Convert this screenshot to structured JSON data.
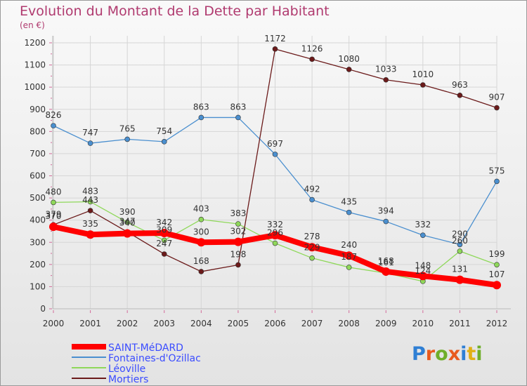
{
  "title": "Evolution du Montant de la Dette par Habitant",
  "subtitle": "(en €)",
  "logo": {
    "text": "Proxiti",
    "colors": [
      "#2f7fd4",
      "#e85a1e",
      "#6fae2a",
      "#e85a1e",
      "#2f7fd4",
      "#e1b014",
      "#6fae2a"
    ]
  },
  "chart_data": {
    "type": "line",
    "x": [
      "2000",
      "2001",
      "2002",
      "2003",
      "2004",
      "2005",
      "2006",
      "2007",
      "2008",
      "2009",
      "2010",
      "2011",
      "2012"
    ],
    "ylim": [
      0,
      1200
    ],
    "yticks": [
      "0",
      "100",
      "200",
      "300",
      "400",
      "500",
      "600",
      "700",
      "800",
      "900",
      "1000",
      "1100",
      "1200"
    ],
    "grid": true,
    "legend_position": "bottom-left",
    "series": [
      {
        "name": "SAINT-MéDARD",
        "color": "#ff0000",
        "values": [
          370,
          335,
          340,
          342,
          300,
          302,
          332,
          278,
          240,
          168,
          148,
          131,
          107
        ],
        "labels": [
          "370",
          "335",
          "340",
          "342",
          "300",
          "302",
          "332",
          "278",
          "240",
          "168",
          "148",
          "131",
          "107"
        ]
      },
      {
        "name": "Fontaines-d'Ozillac",
        "color": "#4a8fcf",
        "values": [
          826,
          747,
          765,
          754,
          863,
          863,
          697,
          492,
          435,
          394,
          332,
          290,
          575
        ],
        "labels": [
          "826",
          "747",
          "765",
          "754",
          "863",
          "863",
          "697",
          "492",
          "435",
          "394",
          "332",
          "290",
          "575"
        ]
      },
      {
        "name": "Léoville",
        "color": "#8fd85a",
        "values": [
          480,
          483,
          390,
          309,
          403,
          383,
          296,
          229,
          187,
          161,
          124,
          260,
          199
        ],
        "labels": [
          "480",
          "483",
          "390",
          "309",
          "403",
          "383",
          "296",
          "229",
          "187",
          "161",
          "124",
          "260",
          "199"
        ]
      },
      {
        "name": "Mortiers",
        "color": "#6b1a1a",
        "values": [
          379,
          443,
          347,
          247,
          168,
          198,
          1172,
          1126,
          1080,
          1033,
          1010,
          963,
          907
        ],
        "labels": [
          "379",
          "443",
          "347",
          "247",
          "168",
          "198",
          "1172",
          "1126",
          "1080",
          "1033",
          "1010",
          "963",
          "907"
        ]
      }
    ]
  }
}
